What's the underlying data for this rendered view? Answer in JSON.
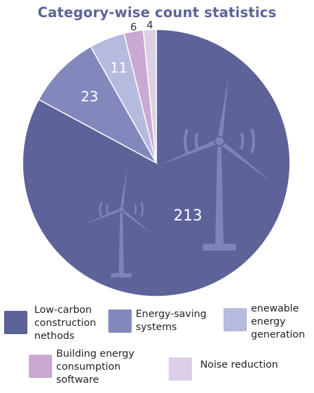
{
  "chart_data": {
    "type": "pie",
    "title": "Category-wise count statistics",
    "categories": [
      "Low-carbon\nconstruction\nnethods",
      "Energy-saving\nsystems",
      "enewable\nenergy\ngeneration",
      "Building energy\nconsumption\nsoftware",
      "Noise reduction"
    ],
    "values": [
      213,
      23,
      11,
      6,
      4
    ],
    "colors": [
      "#5d6299",
      "#8388bc",
      "#b6badf",
      "#c9a8d1",
      "#dcd0e8"
    ],
    "label_colors": [
      "#ffffff",
      "#ffffff",
      "#ffffff",
      "#333333",
      "#333333"
    ],
    "legend_position": "bottom"
  },
  "decorations": [
    "wind-turbine-icon",
    "wind-turbine-icon"
  ]
}
